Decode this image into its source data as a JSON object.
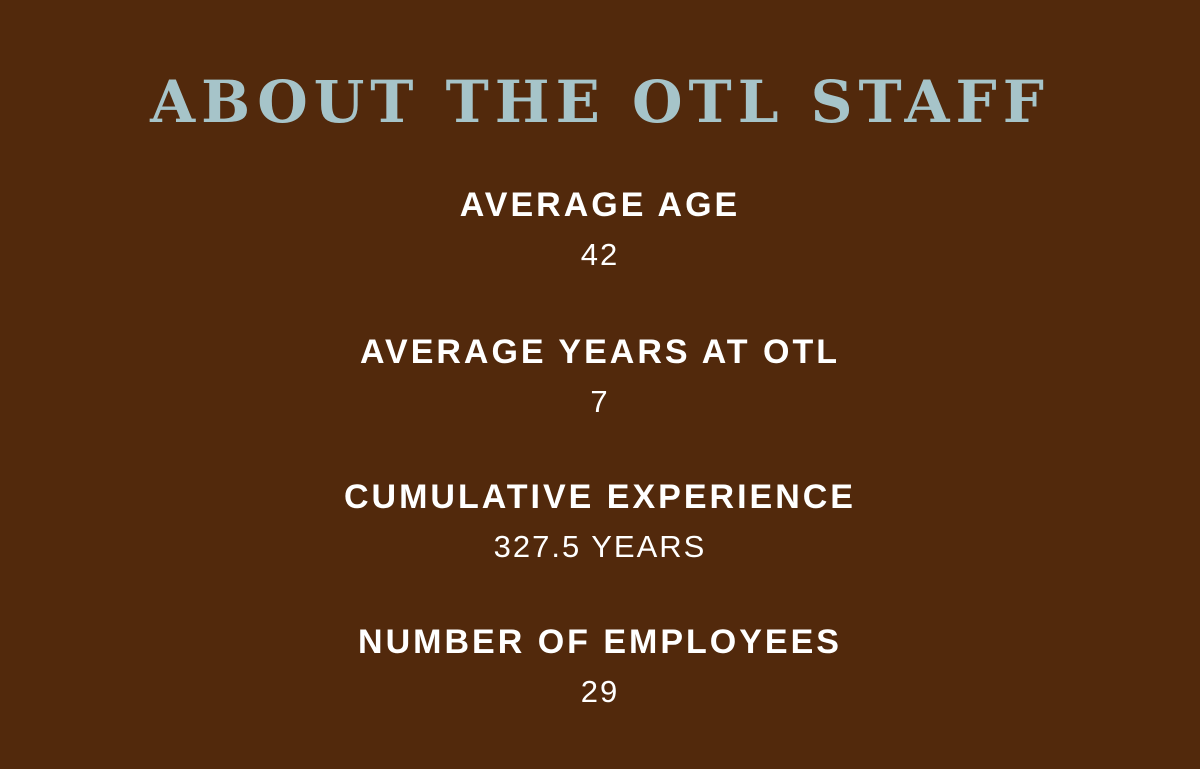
{
  "title": "ABOUT THE OTL STAFF",
  "stats": [
    {
      "label": "AVERAGE AGE",
      "value": "42"
    },
    {
      "label": "AVERAGE YEARS AT OTL",
      "value": "7"
    },
    {
      "label": "CUMULATIVE EXPERIENCE",
      "value": "327.5 YEARS"
    },
    {
      "label": "NUMBER OF EMPLOYEES",
      "value": "29"
    }
  ],
  "colors": {
    "background": "#52290c",
    "title": "#a6c4c9",
    "text": "#ffffff"
  }
}
